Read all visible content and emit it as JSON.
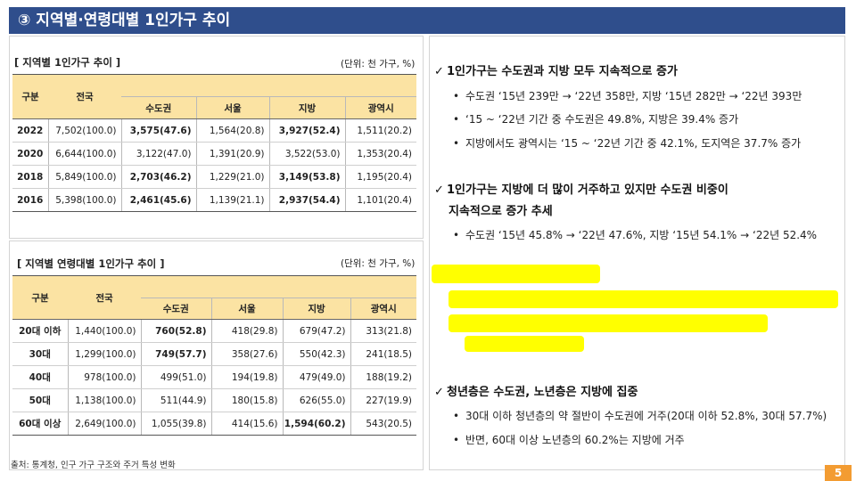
{
  "header": {
    "title": "③ 지역별·연령대별 1인가구 추이"
  },
  "table1": {
    "title": "[ 지역별 1인가구 추이 ]",
    "unit": "(단위: 천 가구, %)",
    "col_group": "구분",
    "col_total": "전국",
    "cols": [
      "수도권",
      "서울",
      "지방",
      "광역시"
    ],
    "rows": [
      {
        "label": "2022",
        "total": "7,502(100.0)",
        "v1": "3,575(47.6)",
        "v2": "1,564(20.8)",
        "v3": "3,927(52.4)",
        "v4": "1,511(20.2)"
      },
      {
        "label": "2020",
        "total": "6,644(100.0)",
        "v1": "3,122(47.0)",
        "v2": "1,391(20.9)",
        "v3": "3,522(53.0)",
        "v4": "1,353(20.4)"
      },
      {
        "label": "2018",
        "total": "5,849(100.0)",
        "v1": "2,703(46.2)",
        "v2": "1,229(21.0)",
        "v3": "3,149(53.8)",
        "v4": "1,195(20.4)"
      },
      {
        "label": "2016",
        "total": "5,398(100.0)",
        "v1": "2,461(45.6)",
        "v2": "1,139(21.1)",
        "v3": "2,937(54.4)",
        "v4": "1,101(20.4)"
      }
    ]
  },
  "table2": {
    "title": "[ 지역별 연령대별 1인가구 추이 ]",
    "unit": "(단위: 천 가구, %)",
    "col_group": "구분",
    "col_total": "전국",
    "cols": [
      "수도권",
      "서울",
      "지방",
      "광역시"
    ],
    "rows": [
      {
        "label": "20대 이하",
        "total": "1,440(100.0)",
        "v1": "760(52.8)",
        "v2": "418(29.8)",
        "v3": "679(47.2)",
        "v4": "313(21.8)"
      },
      {
        "label": "30대",
        "total": "1,299(100.0)",
        "v1": "749(57.7)",
        "v2": "358(27.6)",
        "v3": "550(42.3)",
        "v4": "241(18.5)"
      },
      {
        "label": "40대",
        "total": "978(100.0)",
        "v1": "499(51.0)",
        "v2": "194(19.8)",
        "v3": "479(49.0)",
        "v4": "188(19.2)"
      },
      {
        "label": "50대",
        "total": "1,138(100.0)",
        "v1": "511(44.9)",
        "v2": "180(15.8)",
        "v3": "626(55.0)",
        "v4": "227(19.9)"
      },
      {
        "label": "60대 이상",
        "total": "2,649(100.0)",
        "v1": "1,055(39.8)",
        "v2": "414(15.6)",
        "v3": "1,594(60.2)",
        "v4": "543(20.5)"
      }
    ]
  },
  "source": "출처: 통계청, 인구 가구 구조와 주거 특성 변화",
  "right": {
    "check_icon": "check-icon",
    "b1": {
      "head": "1인가구는 수도권과 지방 모두 지속적으로 증가",
      "subs": [
        "수도권 ‘15년 239만 → ‘22년 358만, 지방 ‘15년 282만 → ‘22년 393만",
        "‘15 ~ ‘22년 기간 중 수도권은 49.8%, 지방은 39.4% 증가",
        "지방에서도 광역시는 ‘15 ~ ‘22년 기간 중 42.1%, 도지역은 37.7% 증가"
      ]
    },
    "b2": {
      "head": "1인가구는 지방에 더 많이 거주하고 있지만 수도권 비중이",
      "head_cont": "지속적으로 증가 추세",
      "subs": [
        "수도권 ‘15년 45.8% → ‘22년 47.6%, 지방 ‘15년 54.1% → ‘22년 52.4%"
      ]
    },
    "b3": {
      "head": "청년층은 수도권, 노년층은 지방에 집중",
      "subs": [
        "30대 이하 청년층의 약 절반이 수도권에 거주(20대 이하 52.8%, 30대 57.7%)",
        "반면, 60대 이상 노년층의 60.2%는 지방에 거주"
      ]
    }
  },
  "highlight_color": "#ffff00",
  "page_number": "5"
}
